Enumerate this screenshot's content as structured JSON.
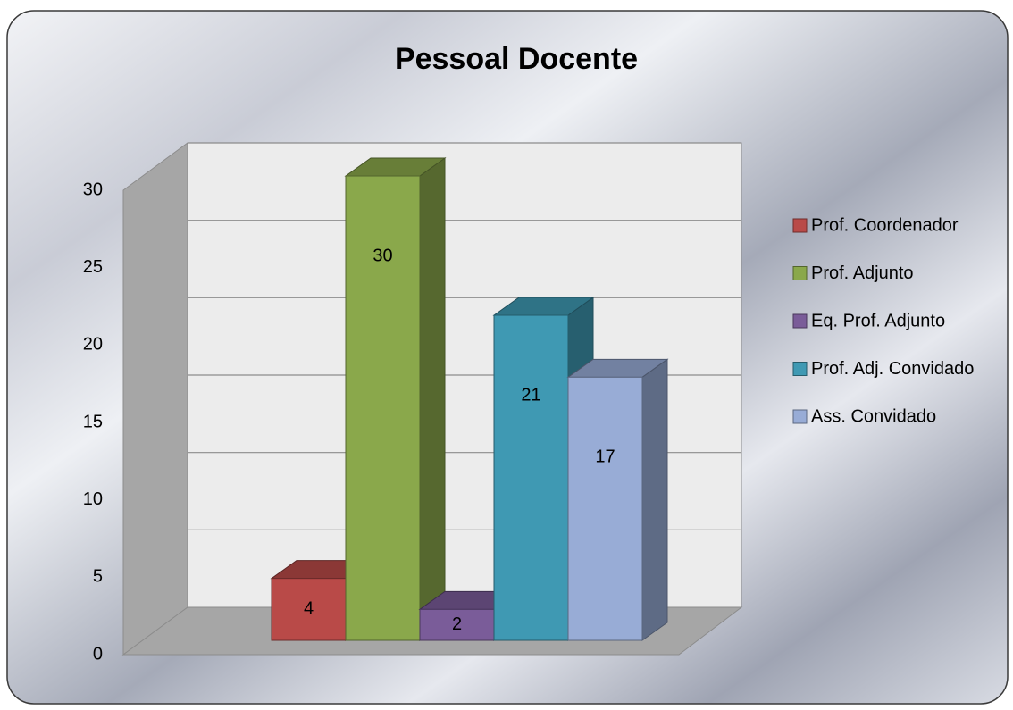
{
  "chart_data": {
    "type": "bar3d",
    "title": "Pessoal Docente",
    "categories": [
      null
    ],
    "series": [
      {
        "name": "Prof. Coordenador",
        "color": "#b94a48",
        "values": [
          4
        ]
      },
      {
        "name": "Prof. Adjunto",
        "color": "#8aa84b",
        "values": [
          30
        ]
      },
      {
        "name": "Eq. Prof. Adjunto",
        "color": "#7a5c99",
        "values": [
          2
        ]
      },
      {
        "name": "Prof. Adj. Convidado",
        "color": "#3f99b3",
        "values": [
          21
        ]
      },
      {
        "name": "Ass. Convidado",
        "color": "#98acd6",
        "values": [
          17
        ]
      }
    ],
    "ylim": [
      0,
      30
    ],
    "yticks": [
      0,
      5,
      10,
      15,
      20,
      25,
      30
    ],
    "grid": true,
    "legend": "right"
  }
}
